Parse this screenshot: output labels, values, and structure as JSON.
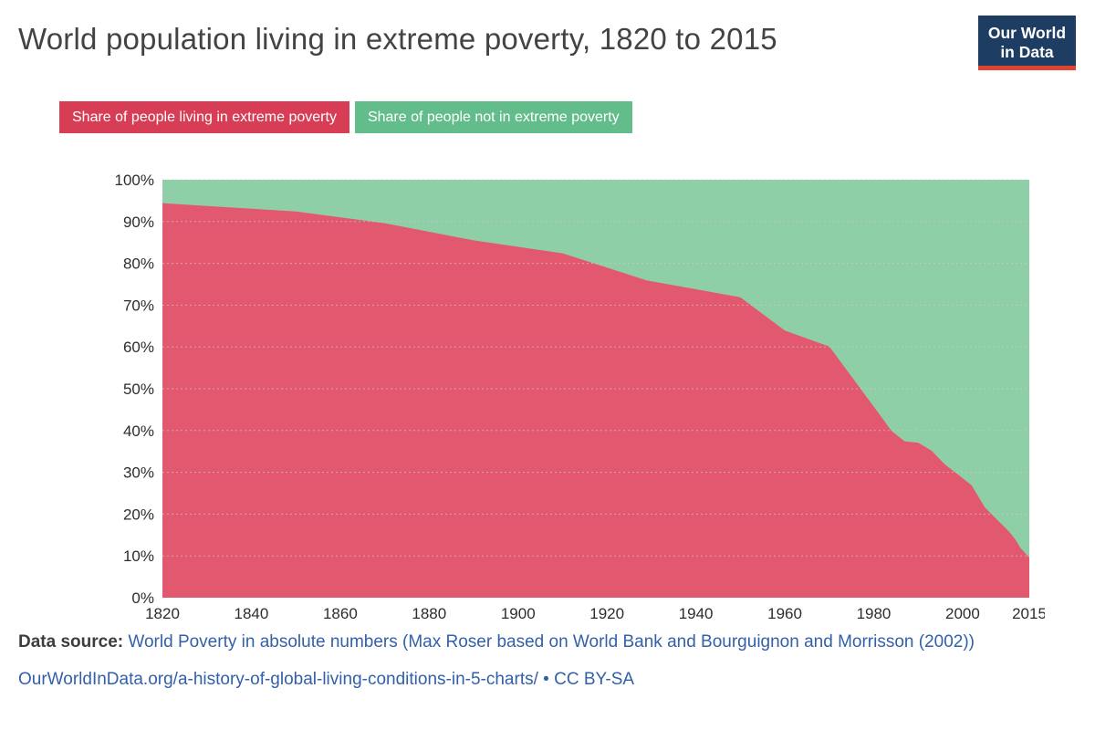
{
  "header": {
    "title": "World population living in extreme poverty, 1820 to 2015"
  },
  "logo": {
    "line1": "Our World",
    "line2": "in Data",
    "bg_color": "#1d3d63",
    "stripe_color": "#e0432f"
  },
  "legend": {
    "items": [
      {
        "label": "Share of people living in extreme poverty",
        "color": "#d73e55"
      },
      {
        "label": "Share of people not in extreme poverty",
        "color": "#62bd8a"
      }
    ]
  },
  "chart_data": {
    "type": "area",
    "stacked": true,
    "title": "World population living in extreme poverty, 1820 to 2015",
    "xlabel": "",
    "ylabel": "",
    "xlim": [
      1820,
      2015
    ],
    "ylim": [
      0,
      100
    ],
    "grid": true,
    "gridline_color": "#c9c9c9",
    "legend_position": "top",
    "x": [
      1820,
      1850,
      1870,
      1890,
      1910,
      1929,
      1950,
      1960,
      1970,
      1981,
      1984,
      1987,
      1990,
      1993,
      1996,
      1999,
      2002,
      2005,
      2008,
      2010,
      2011,
      2012,
      2013,
      2015
    ],
    "series": [
      {
        "name": "Share of people living in extreme poverty",
        "color": "#e2596f",
        "values": [
          94.4,
          92.4,
          89.6,
          85.5,
          82.4,
          75.9,
          71.9,
          63.9,
          60.1,
          44.3,
          39.9,
          37.4,
          37.1,
          35.2,
          31.9,
          29.4,
          26.9,
          21.6,
          18.4,
          16.3,
          15.1,
          13.7,
          11.9,
          9.6
        ]
      },
      {
        "name": "Share of people not in extreme poverty",
        "color": "#8fcfa7",
        "values": [
          5.6,
          7.6,
          10.4,
          14.5,
          17.6,
          24.1,
          28.1,
          36.1,
          39.9,
          55.7,
          60.1,
          62.6,
          62.9,
          64.8,
          68.1,
          70.6,
          73.1,
          78.4,
          81.6,
          83.7,
          84.9,
          86.3,
          88.1,
          90.4
        ]
      }
    ],
    "yticks": [
      {
        "value": 0,
        "label": "0%"
      },
      {
        "value": 10,
        "label": "10%"
      },
      {
        "value": 20,
        "label": "20%"
      },
      {
        "value": 30,
        "label": "30%"
      },
      {
        "value": 40,
        "label": "40%"
      },
      {
        "value": 50,
        "label": "50%"
      },
      {
        "value": 60,
        "label": "60%"
      },
      {
        "value": 70,
        "label": "70%"
      },
      {
        "value": 80,
        "label": "80%"
      },
      {
        "value": 90,
        "label": "90%"
      },
      {
        "value": 100,
        "label": "100%"
      }
    ],
    "xticks": [
      {
        "value": 1820,
        "label": "1820"
      },
      {
        "value": 1840,
        "label": "1840"
      },
      {
        "value": 1860,
        "label": "1860"
      },
      {
        "value": 1880,
        "label": "1880"
      },
      {
        "value": 1900,
        "label": "1900"
      },
      {
        "value": 1920,
        "label": "1920"
      },
      {
        "value": 1940,
        "label": "1940"
      },
      {
        "value": 1960,
        "label": "1960"
      },
      {
        "value": 1980,
        "label": "1980"
      },
      {
        "value": 2000,
        "label": "2000"
      },
      {
        "value": 2015,
        "label": "2015"
      }
    ]
  },
  "footer": {
    "source_label": "Data source:",
    "source_text": "World Poverty in absolute numbers (Max Roser based on World Bank and Bourguignon and Morrisson (2002))",
    "link_text": "OurWorldInData.org/a-history-of-global-living-conditions-in-5-charts/",
    "separator": "•",
    "license": "CC BY-SA"
  }
}
